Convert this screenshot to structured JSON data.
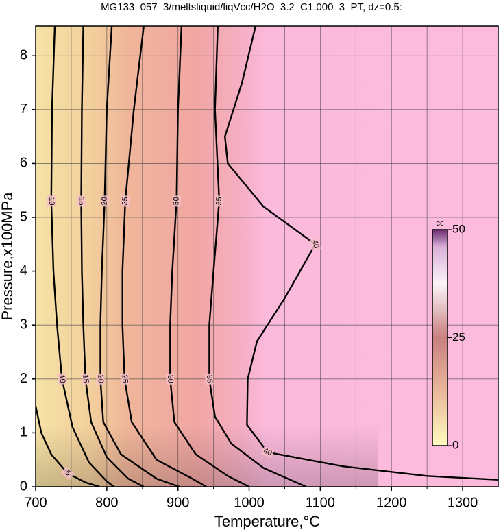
{
  "chart_data": {
    "type": "contour",
    "title": "MG133_057_3/meltsliquid/liqVcc/H2O_3.2_C1.000_3_PT, dz=0.5:",
    "xlabel": "Temperature,°C",
    "ylabel": "Pressure,x100MPa",
    "xlim": [
      700,
      1350
    ],
    "ylim": [
      0,
      8.55
    ],
    "xticks": [
      700,
      800,
      900,
      1000,
      1100,
      1200,
      1300
    ],
    "yticks": [
      0,
      1,
      2,
      3,
      4,
      5,
      6,
      7,
      8
    ],
    "xminorticks": [
      750,
      850,
      950,
      1050,
      1150,
      1250
    ],
    "grid": true,
    "line_color": "#000000",
    "colorbar": {
      "label": "cc",
      "lim": [
        0,
        50
      ],
      "ticks": [
        0,
        25,
        50
      ]
    },
    "series": [
      {
        "level": 5,
        "x": [
          700,
          708,
          722,
          745,
          770,
          790
        ],
        "y": [
          1.5,
          1,
          0.6,
          0.25,
          0.08,
          0
        ]
      },
      {
        "level": 10,
        "x": [
          727,
          723,
          722,
          725,
          730,
          737,
          752,
          775,
          800,
          810
        ],
        "y": [
          8.55,
          7,
          5.3,
          4,
          3,
          2,
          1.1,
          0.45,
          0.1,
          0
        ]
      },
      {
        "level": 15,
        "x": [
          767,
          765,
          764,
          765,
          767,
          770,
          778,
          800,
          830,
          852
        ],
        "y": [
          8.55,
          7,
          5.3,
          4,
          3,
          2,
          1.2,
          0.55,
          0.15,
          0
        ]
      },
      {
        "level": 20,
        "x": [
          807,
          800,
          797,
          793,
          791,
          791,
          795,
          820,
          870,
          902
        ],
        "y": [
          8.55,
          7,
          5.3,
          4,
          3,
          2,
          1.2,
          0.6,
          0.15,
          0
        ]
      },
      {
        "level": 25,
        "x": [
          852,
          838,
          826,
          822,
          822,
          825,
          835,
          870,
          920,
          940
        ],
        "y": [
          8.55,
          7,
          5.3,
          4,
          3,
          2,
          1.2,
          0.5,
          0.15,
          0
        ]
      },
      {
        "level": 30,
        "x": [
          905,
          900,
          898,
          892,
          889,
          889,
          895,
          925,
          970,
          1000
        ],
        "y": [
          8.55,
          7,
          5.3,
          4,
          3,
          2,
          1.2,
          0.6,
          0.2,
          0
        ]
      },
      {
        "level": 35,
        "x": [
          956,
          952,
          958,
          950,
          944,
          944,
          952,
          975,
          1020,
          1080
        ],
        "y": [
          8.55,
          7,
          5.3,
          4,
          3,
          2,
          1.3,
          0.8,
          0.35,
          0
        ]
      },
      {
        "level": 40,
        "x": [
          1009,
          990,
          966,
          970,
          1020,
          1093,
          1050,
          1011,
          998,
          997,
          1026,
          1131,
          1250,
          1350
        ],
        "y": [
          8.55,
          7.5,
          6.5,
          6,
          5.2,
          4.5,
          3.5,
          2.7,
          2,
          1.15,
          0.64,
          0.38,
          0.2,
          0.13
        ]
      }
    ]
  }
}
